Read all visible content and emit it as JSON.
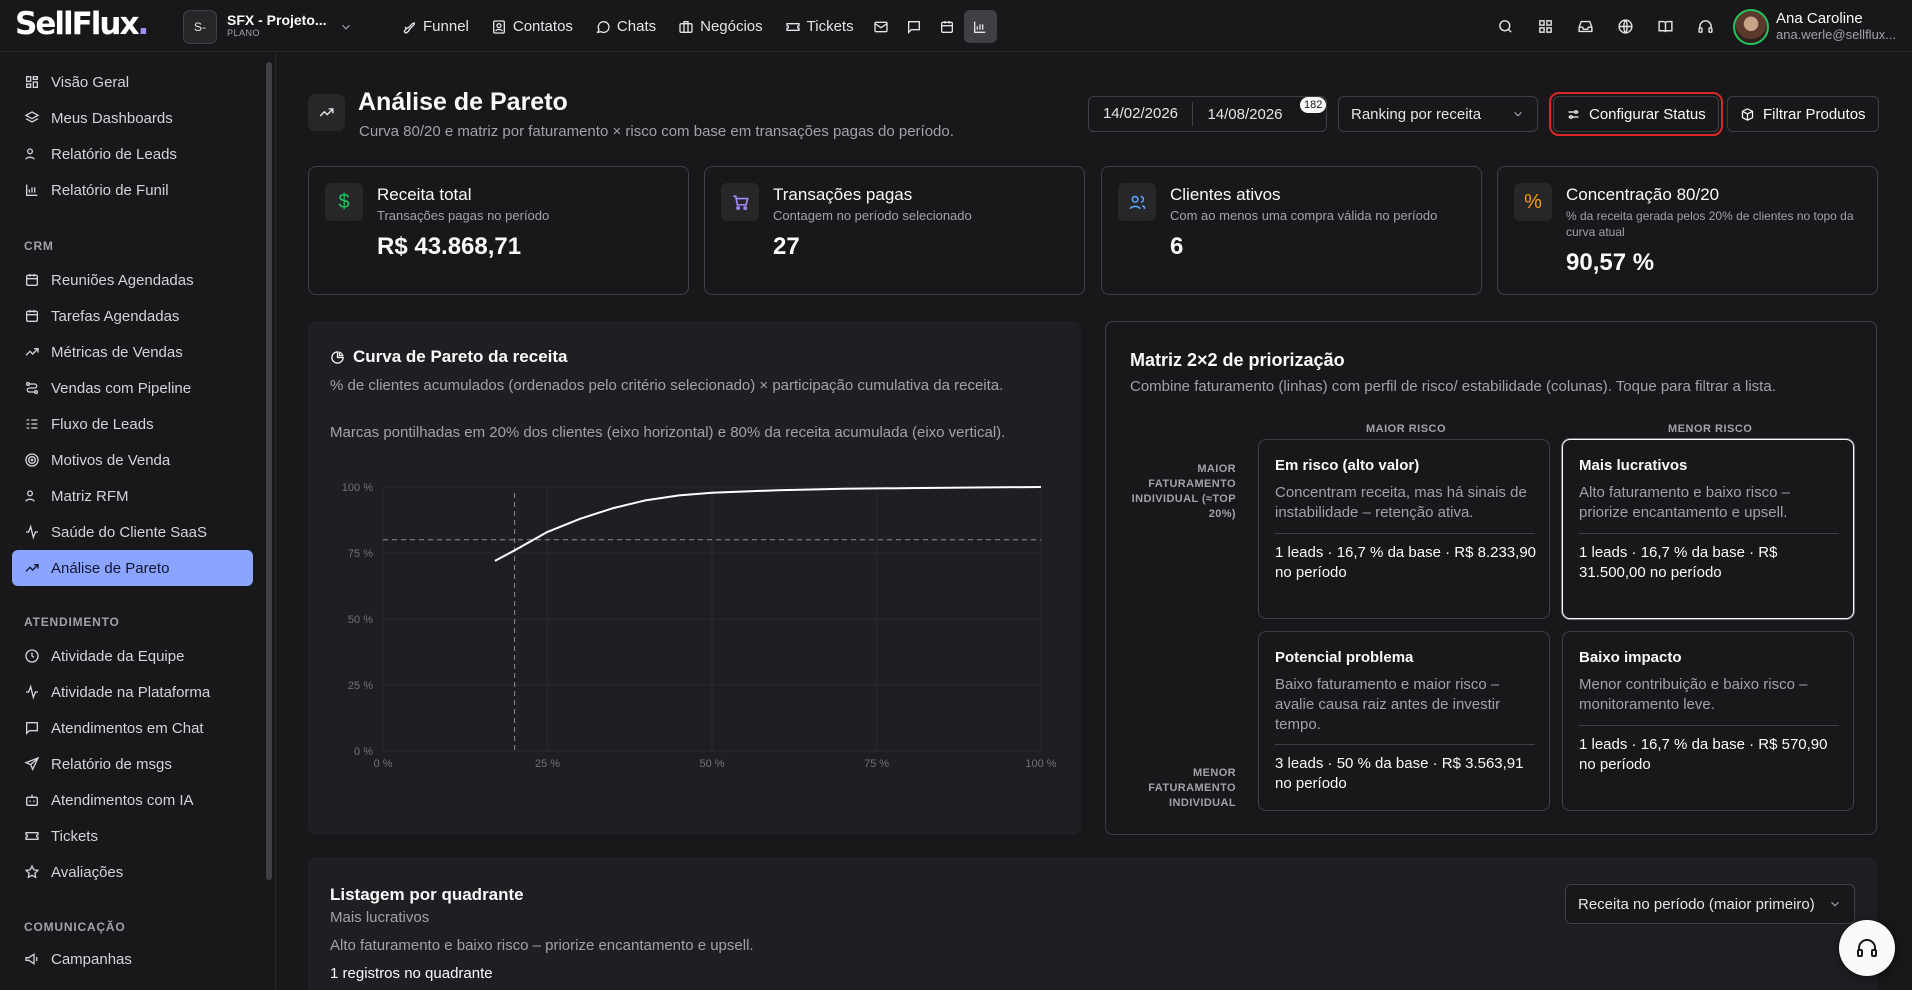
{
  "brand": {
    "logo_main": "SellFlux",
    "logo_dot": "."
  },
  "project": {
    "initials": "S-",
    "name": "SFX - Projeto...",
    "plan": "PLANO"
  },
  "nav": {
    "items": [
      {
        "label": "Funnel",
        "icon": "rocket-icon"
      },
      {
        "label": "Contatos",
        "icon": "contacts-icon"
      },
      {
        "label": "Chats",
        "icon": "chat-icon"
      },
      {
        "label": "Negócios",
        "icon": "briefcase-icon"
      },
      {
        "label": "Tickets",
        "icon": "ticket-icon"
      }
    ]
  },
  "user": {
    "name": "Ana Caroline",
    "email": "ana.werle@sellflux..."
  },
  "sidebar": {
    "general": [
      {
        "label": "Visão Geral",
        "icon": "grid-icon"
      },
      {
        "label": "Meus Dashboards",
        "icon": "layers-icon"
      },
      {
        "label": "Relatório de Leads",
        "icon": "users-icon"
      },
      {
        "label": "Relatório de Funil",
        "icon": "bar-chart-icon"
      }
    ],
    "crm_title": "CRM",
    "crm": [
      {
        "label": "Reuniões Agendadas",
        "icon": "calendar-clock-icon"
      },
      {
        "label": "Tarefas Agendadas",
        "icon": "calendar-icon"
      },
      {
        "label": "Métricas de Vendas",
        "icon": "trend-icon"
      },
      {
        "label": "Vendas com Pipeline",
        "icon": "pipeline-icon"
      },
      {
        "label": "Fluxo de Leads",
        "icon": "list-icon"
      },
      {
        "label": "Motivos de Venda",
        "icon": "target-icon"
      },
      {
        "label": "Matriz RFM",
        "icon": "users-icon"
      },
      {
        "label": "Saúde do Cliente SaaS",
        "icon": "pulse-icon"
      },
      {
        "label": "Análise de Pareto",
        "icon": "trend-icon"
      }
    ],
    "atendimento_title": "ATENDIMENTO",
    "atendimento": [
      {
        "label": "Atividade da Equipe",
        "icon": "clock-icon"
      },
      {
        "label": "Atividade na Plataforma",
        "icon": "activity-icon"
      },
      {
        "label": "Atendimentos em Chat",
        "icon": "message-icon"
      },
      {
        "label": "Relatório de msgs",
        "icon": "send-icon"
      },
      {
        "label": "Atendimentos com IA",
        "icon": "bot-icon"
      },
      {
        "label": "Tickets",
        "icon": "ticket-icon"
      },
      {
        "label": "Avaliações",
        "icon": "star-icon"
      }
    ],
    "comunicacao_title": "COMUNICAÇÃO",
    "comunicacao": [
      {
        "label": "Campanhas",
        "icon": "megaphone-icon"
      }
    ]
  },
  "page": {
    "title": "Análise de Pareto",
    "subtitle": "Curva 80/20 e matriz por faturamento × risco com base em transações pagas do período.",
    "date_start": "14/02/2026",
    "date_end": "14/08/2026",
    "date_badge": "182",
    "ranking_select": "Ranking por receita",
    "config_status_label": "Configurar Status",
    "filter_products_label": "Filtrar Produtos"
  },
  "kpis": [
    {
      "label": "Receita total",
      "sub": "Transações pagas no período",
      "value": "R$ 43.868,71",
      "icon": "$",
      "color": "#22c55e"
    },
    {
      "label": "Transações pagas",
      "sub": "Contagem no período selecionado",
      "value": "27",
      "icon": "cart-icon",
      "color": "#a78bfa"
    },
    {
      "label": "Clientes ativos",
      "sub": "Com ao menos uma compra válida no período",
      "value": "6",
      "icon": "users-icon",
      "color": "#60a5fa"
    },
    {
      "label": "Concentração 80/20",
      "sub": "% da receita gerada pelos 20% de clientes no topo da curva atual",
      "value": "90,57 %",
      "icon": "%",
      "color": "#f59e0b"
    }
  ],
  "pareto": {
    "title": "Curva de Pareto da receita",
    "desc1": "% de clientes acumulados (ordenados pelo critério selecionado) × participação cumulativa da receita.",
    "desc2": "Marcas pontilhadas em 20% dos clientes (eixo horizontal) e 80% da receita acumulada (eixo vertical)."
  },
  "chart_data": {
    "type": "line",
    "x": [
      17,
      20,
      25,
      30,
      35,
      40,
      45,
      50,
      60,
      70,
      80,
      90,
      100
    ],
    "y": [
      72,
      76,
      83,
      88,
      92,
      95,
      96.8,
      97.8,
      98.8,
      99.3,
      99.6,
      99.8,
      100
    ],
    "xlim": [
      0,
      100
    ],
    "ylim": [
      0,
      100
    ],
    "x_ticks": [
      "0 %",
      "25 %",
      "50 %",
      "75 %",
      "100 %"
    ],
    "y_ticks": [
      "0 %",
      "25 %",
      "50 %",
      "75 %",
      "100 %"
    ],
    "ref_x": 20,
    "ref_y": 80,
    "line_color": "#ffffff",
    "grid": true
  },
  "matrix": {
    "title": "Matriz 2×2 de priorização",
    "subtitle": "Combine faturamento (linhas) com perfil de risco/ estabilidade (colunas). Toque para filtrar a lista.",
    "col_high_risk": "MAIOR RISCO",
    "col_low_risk": "MENOR RISCO",
    "row_high": "MAIOR FATURAMENTO INDIVIDUAL (≈TOP 20%)",
    "row_low": "MENOR FATURAMENTO INDIVIDUAL",
    "cells": [
      {
        "title": "Em risco (alto valor)",
        "desc": "Concentram receita, mas há sinais de instabilidade – retenção ativa.",
        "stats": "1 leads · 16,7 % da base · R$ 8.233,90 no período"
      },
      {
        "title": "Mais lucrativos",
        "desc": "Alto faturamento e baixo risco – priorize encantamento e upsell.",
        "stats": "1 leads · 16,7 % da base · R$ 31.500,00 no período"
      },
      {
        "title": "Potencial problema",
        "desc": "Baixo faturamento e maior risco – avalie causa raiz antes de investir tempo.",
        "stats": "3 leads · 50 % da base · R$ 3.563,91 no período"
      },
      {
        "title": "Baixo impacto",
        "desc": "Menor contribuição e baixo risco – monitoramento leve.",
        "stats": "1 leads · 16,7 % da base · R$ 570,90 no período"
      }
    ]
  },
  "listing": {
    "title": "Listagem por quadrante",
    "quadrant": "Mais lucrativos",
    "desc": "Alto faturamento e baixo risco – priorize encantamento e upsell.",
    "count": "1 registros no quadrante",
    "sort": "Receita no período (maior primeiro)"
  }
}
